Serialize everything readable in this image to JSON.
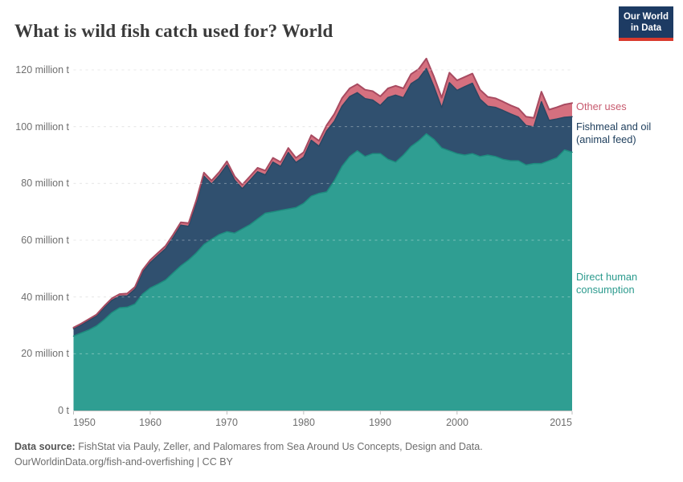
{
  "header": {
    "title": "What is wild fish catch used for? World",
    "logo_line1": "Our World",
    "logo_line2": "in Data",
    "logo_bg": "#1d3b63",
    "logo_bar": "#d93a2d"
  },
  "yaxis": {
    "labels": [
      "0 t",
      "20 million t",
      "40 million t",
      "60 million t",
      "80 million t",
      "100 million t",
      "120 million t"
    ]
  },
  "xaxis": {
    "labels": [
      "1950",
      "1960",
      "1970",
      "1980",
      "1990",
      "2000",
      "2015"
    ]
  },
  "legend": {
    "other": "Other uses",
    "fishmeal1": "Fishmeal and oil",
    "fishmeal2": "(animal feed)",
    "direct1": "Direct human",
    "direct2": "consumption",
    "other_color": "#c75a6e",
    "fishmeal_color": "#21415f",
    "direct_color": "#2b9a8d"
  },
  "footer": {
    "source_label": "Data source:",
    "source_text": " FishStat via Pauly, Zeller, and Palomares from Sea Around Us Concepts, Design and Data.",
    "link_line": "OurWorldinData.org/fish-and-overfishing | CC BY"
  },
  "chart_data": {
    "type": "area",
    "stacked": true,
    "title": "What is wild fish catch used for? World",
    "unit": "million t",
    "ylim": [
      0,
      120
    ],
    "yticks": [
      0,
      20,
      40,
      60,
      80,
      100,
      120
    ],
    "xticks": [
      1950,
      1960,
      1970,
      1980,
      1990,
      2000,
      2015
    ],
    "grid": true,
    "legend_position": "right",
    "x": [
      1950,
      1951,
      1952,
      1953,
      1954,
      1955,
      1956,
      1957,
      1958,
      1959,
      1960,
      1961,
      1962,
      1963,
      1964,
      1965,
      1966,
      1967,
      1968,
      1969,
      1970,
      1971,
      1972,
      1973,
      1974,
      1975,
      1976,
      1977,
      1978,
      1979,
      1980,
      1981,
      1982,
      1983,
      1984,
      1985,
      1986,
      1987,
      1988,
      1989,
      1990,
      1991,
      1992,
      1993,
      1994,
      1995,
      1996,
      1997,
      1998,
      1999,
      2000,
      2001,
      2002,
      2003,
      2004,
      2005,
      2006,
      2007,
      2008,
      2009,
      2010,
      2011,
      2012,
      2013,
      2014,
      2015
    ],
    "series": [
      {
        "name": "Direct human consumption",
        "color": "#2f9e92",
        "line_color": "#1e8c7f",
        "values": [
          26.2,
          27.3,
          28.4,
          29.8,
          32,
          34.5,
          36.2,
          36.4,
          37.5,
          41,
          43.2,
          44.5,
          46,
          48.5,
          51,
          53,
          55.5,
          58.5,
          60.3,
          62,
          63,
          62.5,
          64,
          65.5,
          67.5,
          69.5,
          70,
          70.5,
          71,
          71.5,
          73,
          75.5,
          76.5,
          77,
          81,
          86,
          89.5,
          91.5,
          89.5,
          90.5,
          90.5,
          88.5,
          87.5,
          90,
          93,
          95,
          97.5,
          95.5,
          92.5,
          91.5,
          90.5,
          90,
          90.5,
          89.5,
          90,
          89.5,
          88.5,
          88,
          88,
          86.5,
          87,
          87,
          88,
          89,
          91.8,
          91
        ]
      },
      {
        "name": "Fishmeal and oil (animal feed)",
        "color": "#30506f",
        "line_color": "#2a4763",
        "values": [
          2.6,
          2.8,
          3.3,
          3.5,
          4.2,
          4.3,
          4.1,
          4,
          5.2,
          7.7,
          8.9,
          10.1,
          11,
          12.5,
          14.3,
          11.9,
          17.4,
          24.1,
          19.5,
          20.8,
          23.5,
          18.7,
          14.2,
          15.6,
          16.6,
          13.5,
          17.5,
          15.5,
          19.9,
          15.9,
          16.2,
          19.7,
          16.6,
          21.5,
          20.9,
          21.2,
          21.1,
          20.5,
          20.4,
          18.9,
          17,
          21.8,
          23.6,
          20.2,
          22.1,
          21.9,
          23,
          18.5,
          14.2,
          24,
          22.3,
          24.1,
          24.8,
          20.2,
          17.2,
          17.3,
          17.2,
          16.5,
          15.4,
          13.9,
          12.9,
          21.8,
          14.2,
          13.7,
          11.5,
          12.5
        ]
      },
      {
        "name": "Other uses",
        "color": "#d5707f",
        "line_color": "#a84b61",
        "values": [
          0.4,
          0.5,
          0.5,
          0.5,
          0.6,
          0.7,
          0.7,
          0.8,
          0.8,
          0.8,
          0.9,
          0.9,
          1,
          1,
          1,
          1.1,
          1.1,
          1.2,
          1.2,
          1.2,
          1.3,
          1.3,
          1.3,
          1.4,
          1.4,
          1.5,
          1.5,
          1.5,
          1.6,
          1.6,
          1.8,
          1.8,
          1.9,
          2,
          2.6,
          2.8,
          2.9,
          3,
          3.1,
          3.1,
          3.2,
          3.2,
          3.3,
          3.3,
          3.4,
          3.4,
          3.5,
          3.5,
          3.5,
          3.5,
          3.5,
          3.4,
          3.4,
          3.3,
          3.3,
          3.2,
          3.1,
          3,
          3,
          3.1,
          3.2,
          3.5,
          3.8,
          4.1,
          4.5,
          4.8
        ]
      }
    ]
  }
}
